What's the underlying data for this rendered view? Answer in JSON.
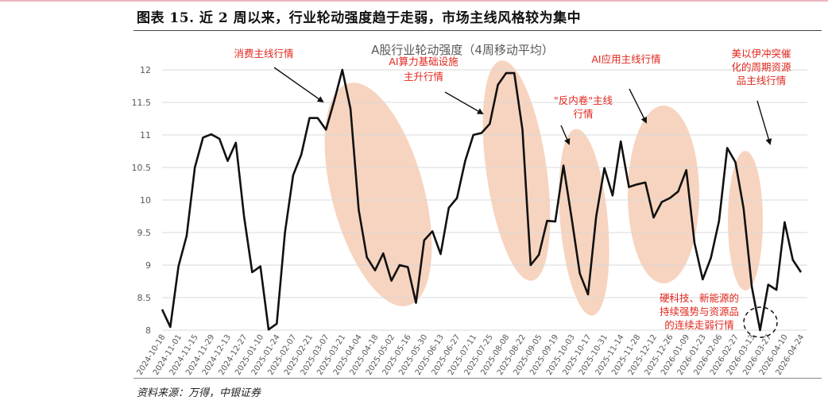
{
  "report_title": "图表 15. 近 2 周以来，行业轮动强度趋于走弱，市场主线风格较为集中",
  "source": "资料来源：万得，中银证券",
  "colors": {
    "line": "#111111",
    "ellipse": "#f6cdb4",
    "annotation": "#e0261c",
    "grid": "#d9d9d9"
  },
  "chart_data": {
    "type": "line",
    "title": "A股行业轮动强度（4周移动平均）",
    "ylim": [
      8,
      12
    ],
    "yticks": [
      "8",
      "8.5",
      "9",
      "9.5",
      "10",
      "10.5",
      "11",
      "11.5",
      "12"
    ],
    "grid": "horizontal",
    "x_tick_labels": [
      "2024-10-18",
      "2024-11-01",
      "2024-11-15",
      "2024-11-29",
      "2024-12-13",
      "2024-12-27",
      "2025-01-10",
      "2025-01-24",
      "2025-02-07",
      "2025-02-21",
      "2025-03-07",
      "2025-03-21",
      "2025-04-04",
      "2025-04-18",
      "2025-05-02",
      "2025-05-16",
      "2025-05-30",
      "2025-06-13",
      "2025-06-27",
      "2025-07-11",
      "2025-07-25",
      "2025-08-08",
      "2025-08-22",
      "2025-09-05",
      "2025-09-19",
      "2025-10-03",
      "2025-10-17",
      "2025-10-31",
      "2025-11-14",
      "2025-11-28",
      "2025-12-12",
      "2025-12-26",
      "2026-01-09",
      "2026-01-23",
      "2026-02-06",
      "2026-02-27",
      "2026-03-13",
      "2026-03-27",
      "2026-04-10",
      "2026-04-24"
    ],
    "series": [
      {
        "values": [
          8.32,
          8.05,
          8.98,
          9.45,
          10.5,
          10.96,
          11.01,
          10.94,
          10.6,
          10.88,
          9.75,
          8.89,
          8.98,
          8.01,
          8.1,
          9.5,
          10.38,
          10.7,
          11.26,
          11.26,
          11.08,
          11.52,
          12.0,
          11.4,
          9.85,
          9.12,
          8.92,
          9.18,
          8.76,
          9.0,
          8.97,
          8.42,
          9.38,
          9.52,
          9.17,
          9.88,
          10.03,
          10.6,
          11.0,
          11.03,
          11.17,
          11.77,
          11.95,
          11.95,
          11.08,
          9.0,
          9.16,
          9.68,
          9.67,
          10.53,
          9.72,
          8.87,
          8.55,
          9.75,
          10.49,
          10.07,
          10.9,
          10.2,
          10.24,
          10.27,
          9.73,
          9.97,
          10.03,
          10.13,
          10.46,
          9.34,
          8.78,
          9.11,
          9.68,
          10.8,
          10.58,
          9.87,
          8.66,
          8.0,
          8.7,
          8.62,
          9.66,
          9.08,
          8.89
        ]
      }
    ],
    "annotations": [
      {
        "text": [
          "消费主线行情"
        ]
      },
      {
        "text": [
          "AI算力基础设施",
          "主升行情"
        ]
      },
      {
        "text": [
          "\"反内卷\"主线",
          "行情"
        ]
      },
      {
        "text": [
          "AI应用主线行情"
        ]
      },
      {
        "text": [
          "美以伊冲突催",
          "化的周期资源",
          "品主线行情"
        ]
      },
      {
        "text": [
          "硬科技、新能源的",
          "持续强势与资源品",
          "的连续走弱行情"
        ]
      }
    ]
  }
}
